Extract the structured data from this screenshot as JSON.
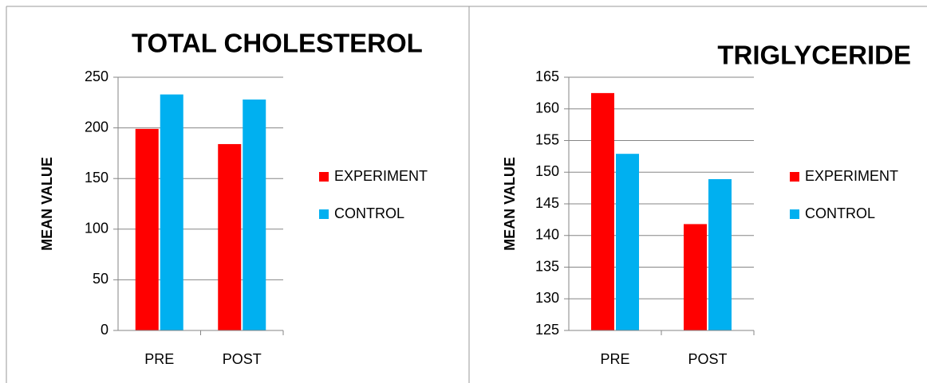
{
  "chart_data": [
    {
      "type": "bar",
      "title": "TOTAL CHOLESTEROL",
      "y_label": "MEAN VALUE",
      "categories": [
        "PRE",
        "POST"
      ],
      "series": [
        {
          "name": "EXPERIMENT",
          "color": "#ff0000",
          "values": [
            199,
            184
          ]
        },
        {
          "name": "CONTROL",
          "color": "#00b0f0",
          "values": [
            233,
            228
          ]
        }
      ],
      "ylim": [
        0,
        250
      ],
      "yticks": [
        0,
        50,
        100,
        150,
        200,
        250
      ],
      "grid": true,
      "legend": "right"
    },
    {
      "type": "bar",
      "title": "TRIGLYCERIDE",
      "y_label": "MEAN VALUE",
      "categories": [
        "PRE",
        "POST"
      ],
      "series": [
        {
          "name": "EXPERIMENT",
          "color": "#ff0000",
          "values": [
            162.5,
            141.8
          ]
        },
        {
          "name": "CONTROL",
          "color": "#00b0f0",
          "values": [
            152.9,
            148.9
          ]
        }
      ],
      "ylim": [
        125,
        165
      ],
      "yticks": [
        125,
        130,
        135,
        140,
        145,
        150,
        155,
        160,
        165
      ],
      "grid": true,
      "legend": "right"
    }
  ]
}
